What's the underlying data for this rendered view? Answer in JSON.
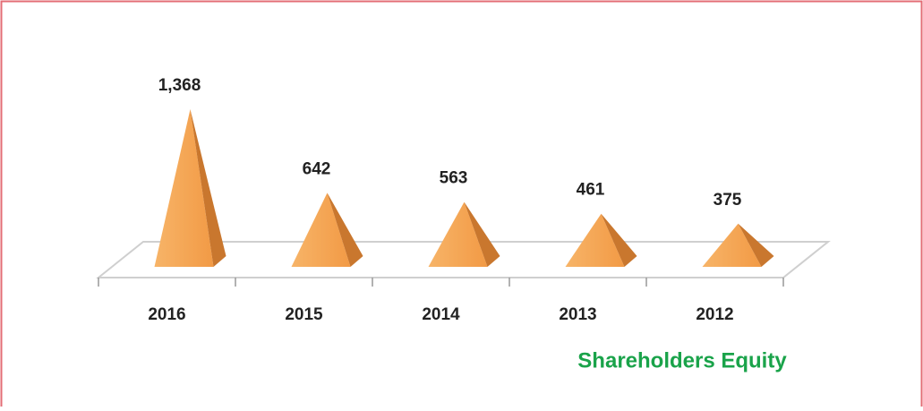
{
  "chart_data": {
    "type": "pyramid",
    "title": "Shareholders Equity",
    "categories": [
      "2016",
      "2015",
      "2014",
      "2013",
      "2012"
    ],
    "values": [
      1368,
      642,
      563,
      461,
      375
    ],
    "value_labels": [
      "1,368",
      "642",
      "563",
      "461",
      "375"
    ],
    "color": "#f4a24f"
  }
}
